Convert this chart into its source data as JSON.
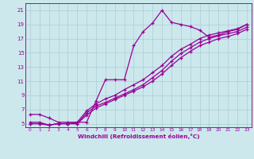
{
  "xlabel": "Windchill (Refroidissement éolien,°C)",
  "bg_color": "#cce8ec",
  "grid_color": "#aacdd4",
  "line_color": "#990099",
  "spine_color": "#7a007a",
  "xlim": [
    -0.5,
    23.5
  ],
  "ylim": [
    4.5,
    22.0
  ],
  "xticks": [
    0,
    1,
    2,
    3,
    4,
    5,
    6,
    7,
    8,
    9,
    10,
    11,
    12,
    13,
    14,
    15,
    16,
    17,
    18,
    19,
    20,
    21,
    22,
    23
  ],
  "yticks": [
    5,
    7,
    9,
    11,
    13,
    15,
    17,
    19,
    21
  ],
  "line1_x": [
    0,
    1,
    2,
    3,
    4,
    5,
    6,
    7,
    8,
    9,
    10,
    11,
    12,
    13,
    14,
    15,
    16,
    17,
    18,
    19,
    20,
    21,
    22,
    23
  ],
  "line1_y": [
    6.3,
    6.3,
    5.8,
    5.2,
    5.2,
    5.2,
    5.2,
    8.2,
    11.2,
    11.2,
    11.2,
    16.0,
    18.0,
    19.2,
    21.0,
    19.3,
    19.0,
    18.7,
    18.2,
    17.2,
    17.5,
    18.0,
    18.3,
    19.0
  ],
  "line2_x": [
    0,
    1,
    2,
    3,
    4,
    5,
    6,
    7,
    8,
    9,
    10,
    11,
    12,
    13,
    14,
    15,
    16,
    17,
    18,
    19,
    20,
    21,
    22,
    23
  ],
  "line2_y": [
    5.2,
    5.2,
    4.8,
    5.0,
    5.0,
    5.2,
    6.8,
    7.8,
    8.5,
    9.0,
    9.8,
    10.5,
    11.2,
    12.2,
    13.2,
    14.5,
    15.5,
    16.2,
    17.0,
    17.5,
    17.8,
    18.1,
    18.4,
    19.0
  ],
  "line3_x": [
    0,
    1,
    2,
    3,
    4,
    5,
    6,
    7,
    8,
    9,
    10,
    11,
    12,
    13,
    14,
    15,
    16,
    17,
    18,
    19,
    20,
    21,
    22,
    23
  ],
  "line3_y": [
    5.0,
    5.0,
    4.8,
    5.0,
    5.0,
    5.0,
    6.5,
    7.5,
    8.0,
    8.6,
    9.2,
    9.8,
    10.5,
    11.5,
    12.5,
    13.8,
    14.9,
    15.7,
    16.5,
    17.0,
    17.4,
    17.7,
    18.0,
    18.6
  ],
  "line4_x": [
    0,
    1,
    2,
    3,
    4,
    5,
    6,
    7,
    8,
    9,
    10,
    11,
    12,
    13,
    14,
    15,
    16,
    17,
    18,
    19,
    20,
    21,
    22,
    23
  ],
  "line4_y": [
    5.0,
    5.0,
    4.8,
    5.0,
    5.0,
    5.0,
    6.2,
    7.2,
    7.8,
    8.4,
    9.0,
    9.6,
    10.2,
    11.0,
    12.0,
    13.2,
    14.3,
    15.2,
    16.0,
    16.5,
    17.0,
    17.3,
    17.7,
    18.3
  ]
}
